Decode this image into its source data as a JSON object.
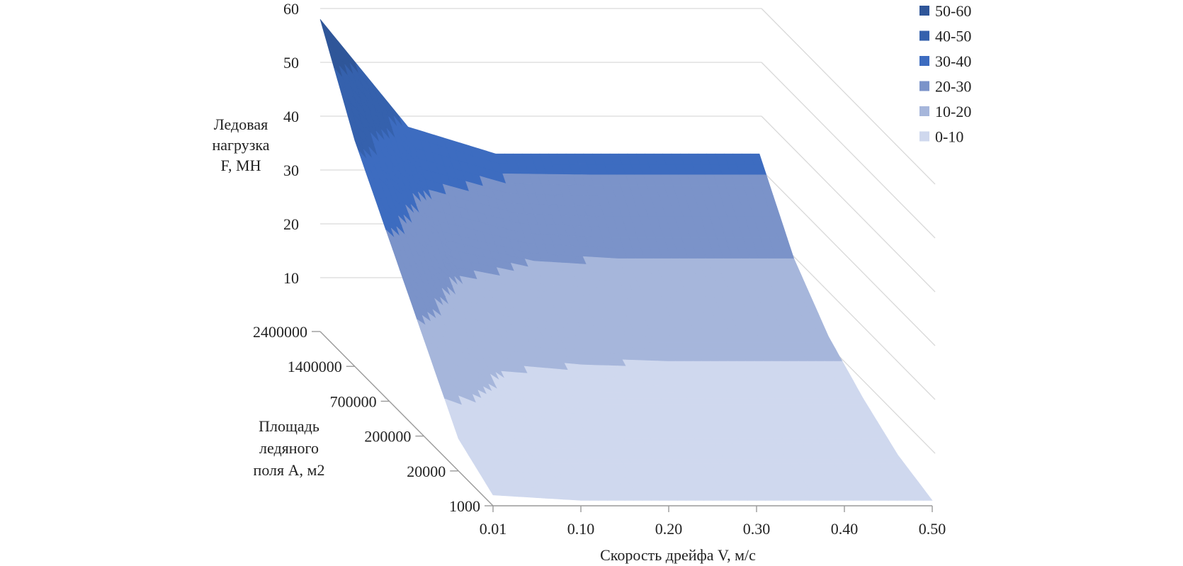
{
  "chart_data": {
    "type": "surface",
    "z_axis": {
      "title_lines": [
        "Ледовая",
        "нагрузка",
        "F, МН"
      ],
      "ticks": [
        10,
        20,
        30,
        40,
        50,
        60
      ],
      "range": [
        0,
        60
      ]
    },
    "y_axis": {
      "title_lines": [
        "Площадь",
        "ледяного",
        "поля A, м2"
      ],
      "ticks": [
        "1000",
        "20000",
        "200000",
        "700000",
        "1400000",
        "2400000"
      ]
    },
    "x_axis": {
      "title": "Скорость дрейфа V, м/с",
      "ticks": [
        "0.01",
        "0.10",
        "0.20",
        "0.30",
        "0.40",
        "0.50"
      ]
    },
    "legend": [
      {
        "label": "50-60",
        "color": "#2f5699"
      },
      {
        "label": "40-50",
        "color": "#3561ad"
      },
      {
        "label": "30-40",
        "color": "#3d6cc0"
      },
      {
        "label": "20-30",
        "color": "#7b93c9"
      },
      {
        "label": "10-20",
        "color": "#a6b6db"
      },
      {
        "label": "0-10",
        "color": "#cfd8ee"
      }
    ],
    "grid": true,
    "legend_position": "top-right",
    "surface_values": {
      "x": [
        0.01,
        0.1,
        0.2,
        0.3,
        0.4,
        0.5
      ],
      "y": [
        1000,
        20000,
        200000,
        700000,
        1400000,
        2400000
      ],
      "z": [
        [
          2,
          1,
          1,
          1,
          1,
          1
        ],
        [
          6,
          3,
          3,
          3,
          3,
          3
        ],
        [
          18,
          8,
          7,
          7,
          7,
          7
        ],
        [
          30,
          15,
          13,
          12,
          12,
          12
        ],
        [
          42,
          25,
          21,
          20,
          20,
          20
        ],
        [
          58,
          38,
          33,
          33,
          33,
          33
        ]
      ]
    }
  }
}
